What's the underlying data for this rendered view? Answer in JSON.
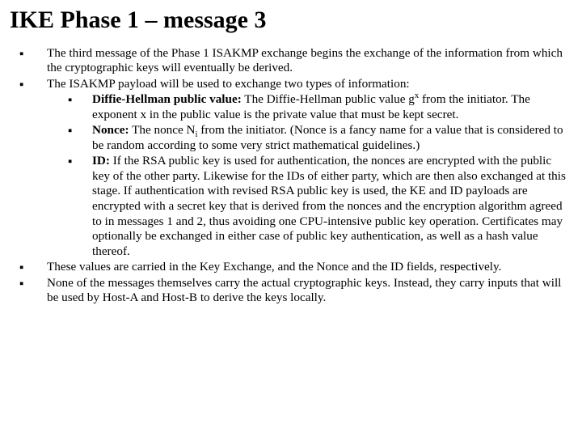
{
  "title": "IKE Phase 1 – message 3",
  "bullets": {
    "b1": "The third message of the Phase 1 ISAKMP exchange begins the exchange of the information from which the cryptographic keys will eventually be derived.",
    "b2": "The ISAKMP payload will be used to exchange two types of information:",
    "b3": "These values are carried in the Key Exchange, and the Nonce and the ID fields, respectively.",
    "b4": "None of the messages themselves carry the actual cryptographic keys. Instead, they carry inputs that will be used by Host-A and Host-B to derive the keys locally."
  },
  "sub": {
    "s1_label": "Diffie-Hellman public value:",
    "s1_pre": " The Diffie-Hellman public value g",
    "s1_sup": "x",
    "s1_post": " from the initiator. The exponent x in the public value is the private value that must be kept secret.",
    "s2_label": "Nonce:",
    "s2_pre": " The nonce N",
    "s2_sub": "i",
    "s2_post": " from the initiator. (Nonce is a fancy name for a value that is considered to be random according to some very strict mathematical guidelines.)",
    "s3_label": "ID:",
    "s3_text": " If the RSA public key is used for authentication, the nonces are encrypted with the public key of the other party. Likewise for the IDs of either party, which are then also exchanged at this stage. If authentication with revised RSA public key is used, the KE and ID payloads are encrypted with a secret key that is derived from the nonces and the encryption algorithm agreed to in messages 1 and 2, thus avoiding one CPU-intensive public key operation. Certificates may optionally be exchanged in either case of public key authentication, as well as a hash value thereof."
  }
}
